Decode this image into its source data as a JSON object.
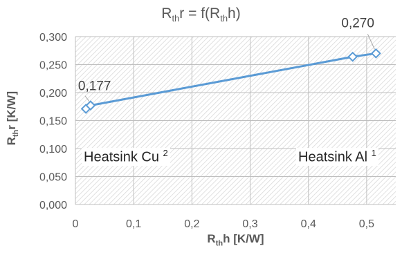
{
  "chart_data": {
    "type": "scatter",
    "title": {
      "main": "R",
      "sub1": "th",
      "mid": "r = f(R",
      "sub2": "th",
      "end": "h)"
    },
    "xlabel": {
      "main": "R",
      "sub": "th",
      "rest": "h [K/W]"
    },
    "ylabel": {
      "main": "R",
      "sub": "th",
      "rest": "r [K/W]"
    },
    "xlim": [
      0,
      0.55
    ],
    "ylim": [
      0,
      0.3
    ],
    "x_ticks": [
      0,
      0.1,
      0.2,
      0.3,
      0.4,
      0.5
    ],
    "x_tick_labels": [
      "0",
      "0,1",
      "0,2",
      "0,3",
      "0,4",
      "0,5"
    ],
    "y_ticks": [
      0,
      0.05,
      0.1,
      0.15,
      0.2,
      0.25,
      0.3
    ],
    "y_tick_labels": [
      "0,000",
      "0,050",
      "0,100",
      "0,150",
      "0,200",
      "0,250",
      "0,300"
    ],
    "grid": true,
    "series": [
      {
        "x": [
          0.018,
          0.026,
          0.476,
          0.516
        ],
        "y": [
          0.171,
          0.177,
          0.264,
          0.27
        ],
        "color": "#5b9bd5",
        "marker": "diamond"
      }
    ],
    "data_labels": [
      {
        "text": "0,177",
        "x": 0.026,
        "y": 0.177
      },
      {
        "text": "0,270",
        "x": 0.516,
        "y": 0.27
      }
    ],
    "annotations": [
      {
        "text": "Heatsink Cu",
        "sup": "2"
      },
      {
        "text": "Heatsink Al",
        "sup": "1"
      }
    ]
  }
}
